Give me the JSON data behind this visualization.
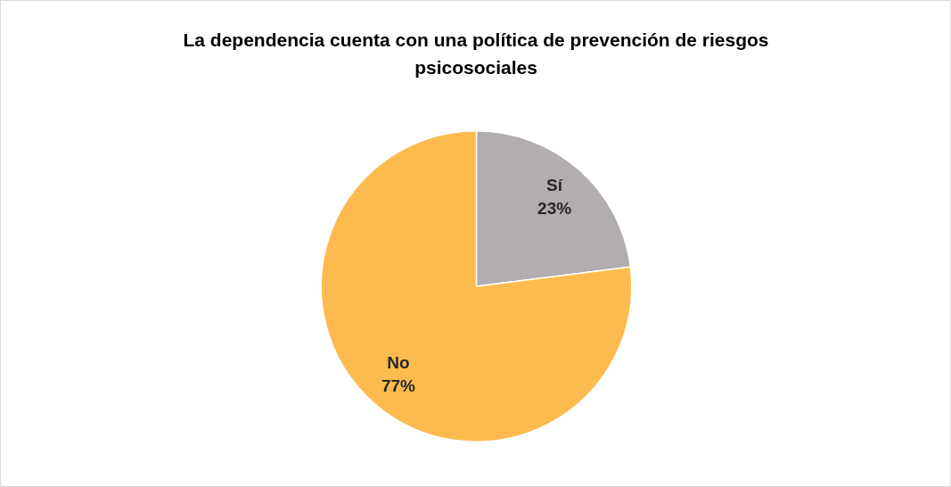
{
  "chart_data": {
    "type": "pie",
    "title": "La dependencia cuenta con una política de prevención de riesgos psicosociales",
    "categories": [
      "Sí",
      "No"
    ],
    "values": [
      23,
      77
    ],
    "colors": [
      "#b1adb0",
      "#fdbb4f"
    ],
    "value_labels": [
      "23%",
      "77%"
    ],
    "legend": false
  }
}
